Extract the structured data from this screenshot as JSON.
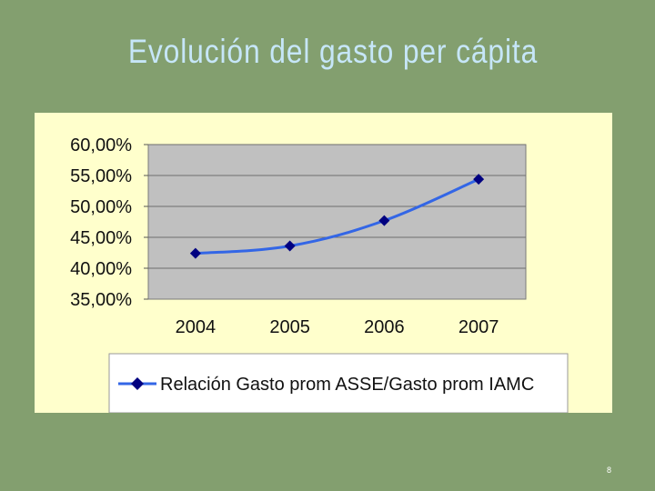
{
  "slide": {
    "title": "Evolución del gasto per cápita",
    "page_number": "8"
  },
  "colors": {
    "background": "#839f6f",
    "panel": "#ffffcc",
    "plot_area": "#c0c0c0",
    "line": "#3366e6",
    "marker": "#000080"
  },
  "chart_data": {
    "type": "line",
    "title": "",
    "xlabel": "",
    "ylabel": "",
    "categories": [
      "2004",
      "2005",
      "2006",
      "2007"
    ],
    "series": [
      {
        "name": "Relación Gasto prom ASSE/Gasto prom IAMC",
        "values": [
          0.424,
          0.436,
          0.477,
          0.544
        ]
      }
    ],
    "ylim": [
      0.35,
      0.6
    ],
    "y_ticks": [
      "60,00%",
      "55,00%",
      "50,00%",
      "45,00%",
      "40,00%",
      "35,00%"
    ],
    "y_tick_values": [
      0.6,
      0.55,
      0.5,
      0.45,
      0.4,
      0.35
    ],
    "grid": true,
    "legend_position": "bottom"
  }
}
